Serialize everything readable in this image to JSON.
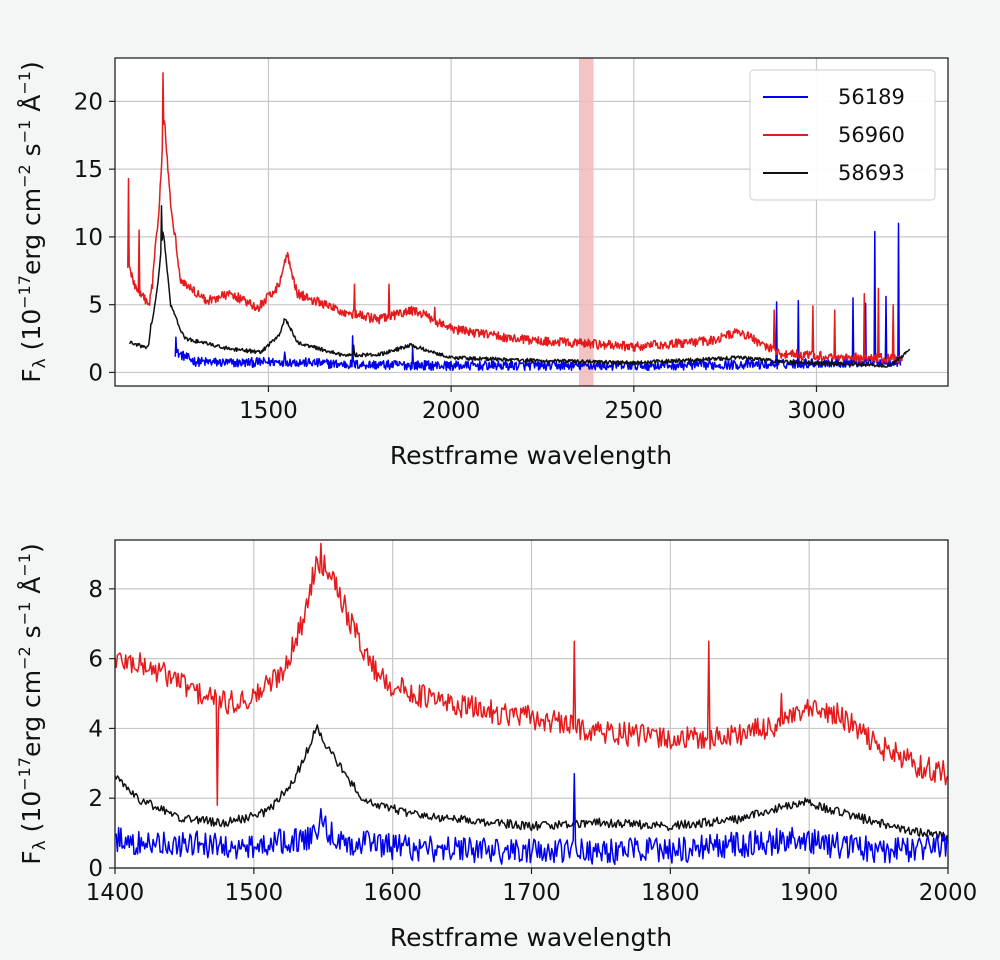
{
  "chart_data": [
    {
      "type": "line",
      "xlabel": "Restframe wavelength",
      "ylabel": "F_λ (10^-17 erg cm^-2 s^-1 Å^-1)",
      "xlim": [
        1080,
        3360
      ],
      "ylim": [
        -1,
        23.2
      ],
      "xticks": [
        1500,
        2000,
        2500,
        3000
      ],
      "yticks": [
        0,
        5,
        10,
        15,
        20
      ],
      "grid": true,
      "legend": "top-right",
      "shaded_band": {
        "x0": 2350,
        "x1": 2390,
        "color": "#f2b8b8"
      },
      "series": [
        {
          "name": "56189",
          "color": "#0000ee",
          "x_range": [
            1245,
            3230
          ],
          "noise": 0.35,
          "points": [
            [
              1245,
              1.5
            ],
            [
              1300,
              0.8
            ],
            [
              1400,
              0.7
            ],
            [
              1550,
              0.8
            ],
            [
              1700,
              0.6
            ],
            [
              2000,
              0.5
            ],
            [
              2500,
              0.5
            ],
            [
              2880,
              0.6
            ],
            [
              3000,
              0.7
            ],
            [
              3230,
              0.8
            ]
          ],
          "spikes": [
            [
              1246,
              2.6
            ],
            [
              1545,
              1.5
            ],
            [
              1730,
              2.7
            ],
            [
              1895,
              1.9
            ],
            [
              2890,
              5.2
            ],
            [
              2950,
              5.3
            ],
            [
              3100,
              5.5
            ],
            [
              3135,
              5.1
            ],
            [
              3160,
              10.4
            ],
            [
              3190,
              5.6
            ],
            [
              3225,
              11.0
            ]
          ]
        },
        {
          "name": "56960",
          "color": "#e41a1c",
          "x_range": [
            1115,
            3235
          ],
          "noise": 0.35,
          "points": [
            [
              1115,
              8
            ],
            [
              1140,
              6
            ],
            [
              1175,
              5
            ],
            [
              1200,
              12
            ],
            [
              1215,
              19
            ],
            [
              1230,
              13
            ],
            [
              1260,
              6.8
            ],
            [
              1330,
              5.3
            ],
            [
              1400,
              5.8
            ],
            [
              1470,
              4.7
            ],
            [
              1530,
              6.5
            ],
            [
              1550,
              8.8
            ],
            [
              1580,
              5.8
            ],
            [
              1700,
              4.5
            ],
            [
              1800,
              3.9
            ],
            [
              1900,
              4.6
            ],
            [
              2000,
              3.2
            ],
            [
              2200,
              2.4
            ],
            [
              2500,
              1.9
            ],
            [
              2700,
              2.3
            ],
            [
              2790,
              3.0
            ],
            [
              2900,
              1.4
            ],
            [
              3000,
              1.2
            ],
            [
              3100,
              1.1
            ],
            [
              3235,
              1.0
            ]
          ],
          "spikes": [
            [
              1117,
              14.3
            ],
            [
              1145,
              10.5
            ],
            [
              1183,
              6.2
            ],
            [
              1212,
              22.1
            ],
            [
              1735,
              6.5
            ],
            [
              1830,
              6.5
            ],
            [
              1955,
              4.8
            ],
            [
              2885,
              4.6
            ],
            [
              2990,
              4.9
            ],
            [
              3050,
              4.6
            ],
            [
              3130,
              5.8
            ],
            [
              3170,
              6.2
            ],
            [
              3210,
              5.0
            ]
          ]
        },
        {
          "name": "58693",
          "color": "#111111",
          "x_range": [
            1120,
            3255
          ],
          "noise": 0.14,
          "points": [
            [
              1120,
              2.2
            ],
            [
              1170,
              1.8
            ],
            [
              1195,
              6.0
            ],
            [
              1212,
              10.5
            ],
            [
              1232,
              5.0
            ],
            [
              1270,
              2.5
            ],
            [
              1400,
              1.7
            ],
            [
              1480,
              1.5
            ],
            [
              1530,
              2.8
            ],
            [
              1545,
              4.0
            ],
            [
              1580,
              2.2
            ],
            [
              1700,
              1.3
            ],
            [
              1800,
              1.3
            ],
            [
              1890,
              2.0
            ],
            [
              2000,
              1.1
            ],
            [
              2200,
              0.9
            ],
            [
              2500,
              0.7
            ],
            [
              2790,
              1.1
            ],
            [
              2900,
              0.8
            ],
            [
              3100,
              0.6
            ],
            [
              3200,
              0.5
            ],
            [
              3255,
              1.6
            ]
          ],
          "spikes": [
            [
              1208,
              12.3
            ],
            [
              1178,
              3.6
            ],
            [
              1733,
              2.0
            ]
          ]
        }
      ]
    },
    {
      "type": "line",
      "xlabel": "Restframe wavelength",
      "ylabel": "F_λ (10^-17 erg cm^-2 s^-1 Å^-1)",
      "xlim": [
        1400,
        2000
      ],
      "ylim": [
        0,
        9.4
      ],
      "xticks": [
        1400,
        1500,
        1600,
        1700,
        1800,
        1900,
        2000
      ],
      "yticks": [
        0,
        2,
        4,
        6,
        8
      ],
      "grid": true,
      "series": [
        {
          "name": "56960",
          "color": "#e41a1c",
          "x_range": [
            1400,
            2000
          ],
          "noise": 0.35,
          "points": [
            [
              1400,
              6.0
            ],
            [
              1420,
              5.8
            ],
            [
              1440,
              5.5
            ],
            [
              1460,
              5.0
            ],
            [
              1480,
              4.7
            ],
            [
              1500,
              4.9
            ],
            [
              1520,
              5.6
            ],
            [
              1535,
              7.0
            ],
            [
              1545,
              8.8
            ],
            [
              1555,
              8.6
            ],
            [
              1570,
              7.0
            ],
            [
              1585,
              5.8
            ],
            [
              1600,
              5.2
            ],
            [
              1640,
              4.7
            ],
            [
              1700,
              4.3
            ],
            [
              1750,
              3.9
            ],
            [
              1800,
              3.7
            ],
            [
              1830,
              3.7
            ],
            [
              1870,
              4.0
            ],
            [
              1900,
              4.5
            ],
            [
              1920,
              4.4
            ],
            [
              1950,
              3.5
            ],
            [
              1980,
              2.9
            ],
            [
              2000,
              2.7
            ]
          ],
          "spikes": [
            [
              1474,
              1.8
            ],
            [
              1548,
              9.3
            ],
            [
              1731,
              6.5
            ],
            [
              1828,
              6.5
            ],
            [
              1829,
              2.1
            ],
            [
              1955,
              4.8
            ],
            [
              1880,
              5.0
            ]
          ]
        },
        {
          "name": "58693",
          "color": "#111111",
          "x_range": [
            1400,
            2000
          ],
          "noise": 0.13,
          "points": [
            [
              1400,
              2.6
            ],
            [
              1420,
              1.9
            ],
            [
              1450,
              1.4
            ],
            [
              1480,
              1.3
            ],
            [
              1510,
              1.6
            ],
            [
              1530,
              2.6
            ],
            [
              1545,
              4.0
            ],
            [
              1560,
              3.0
            ],
            [
              1580,
              1.9
            ],
            [
              1620,
              1.5
            ],
            [
              1700,
              1.2
            ],
            [
              1750,
              1.3
            ],
            [
              1800,
              1.2
            ],
            [
              1850,
              1.4
            ],
            [
              1895,
              1.9
            ],
            [
              1930,
              1.5
            ],
            [
              1970,
              1.1
            ],
            [
              2000,
              0.9
            ]
          ],
          "spikes": [
            [
              1546,
              4.1
            ]
          ]
        },
        {
          "name": "56189",
          "color": "#0000ee",
          "x_range": [
            1400,
            2000
          ],
          "noise": 0.38,
          "points": [
            [
              1400,
              0.8
            ],
            [
              1450,
              0.7
            ],
            [
              1500,
              0.6
            ],
            [
              1540,
              0.9
            ],
            [
              1548,
              1.3
            ],
            [
              1560,
              0.8
            ],
            [
              1600,
              0.6
            ],
            [
              1700,
              0.45
            ],
            [
              1800,
              0.5
            ],
            [
              1890,
              0.8
            ],
            [
              1950,
              0.5
            ],
            [
              2000,
              0.6
            ]
          ],
          "spikes": [
            [
              1731,
              2.7
            ],
            [
              1548,
              1.7
            ],
            [
              1895,
              1.5
            ]
          ]
        }
      ]
    }
  ]
}
